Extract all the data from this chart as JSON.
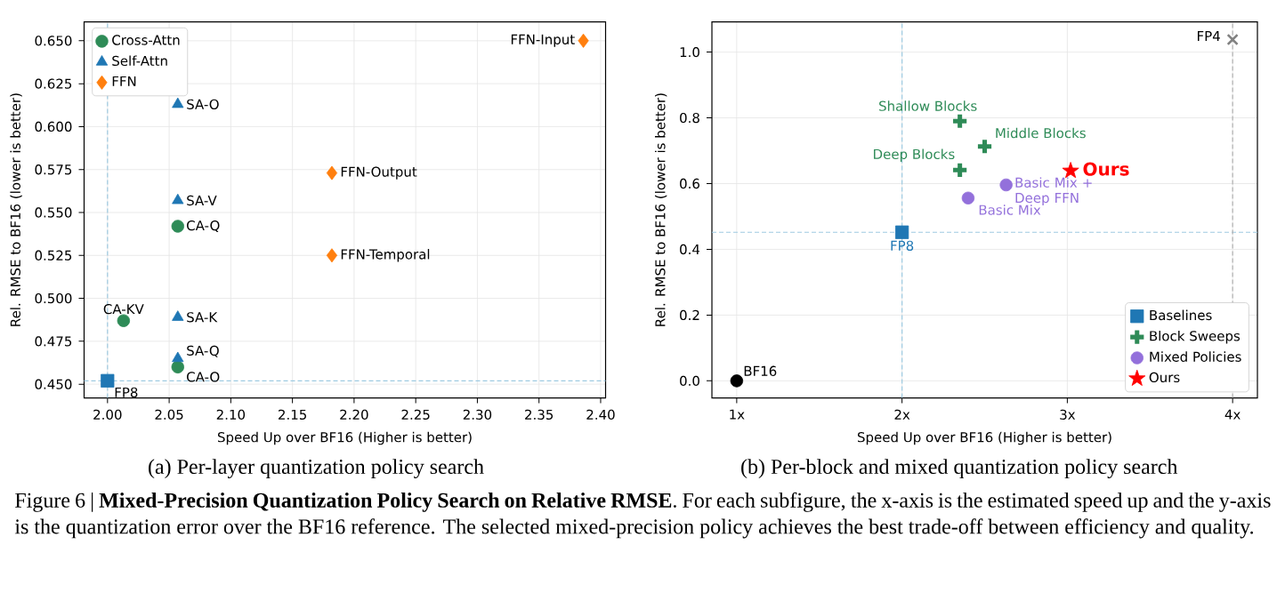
{
  "chart_data": [
    {
      "type": "scatter",
      "xlabel": "Speed Up over BF16 (Higher is better)",
      "ylabel": "Rel. RMSE to BF16 (lower is better)",
      "xlim": [
        1.981,
        2.404
      ],
      "ylim": [
        0.442,
        0.661
      ],
      "xticks": [
        {
          "value": 2,
          "label": "2.00"
        },
        {
          "value": 2.05,
          "label": "2.05"
        },
        {
          "value": 2.1,
          "label": "2.10"
        },
        {
          "value": 2.15,
          "label": "2.15"
        },
        {
          "value": 2.2,
          "label": "2.20"
        },
        {
          "value": 2.25,
          "label": "2.25"
        },
        {
          "value": 2.3,
          "label": "2.30"
        },
        {
          "value": 2.35,
          "label": "2.35"
        },
        {
          "value": 2.4,
          "label": "2.40"
        }
      ],
      "yticks": [
        {
          "value": 0.45,
          "label": "0.450"
        },
        {
          "value": 0.475,
          "label": "0.475"
        },
        {
          "value": 0.5,
          "label": "0.500"
        },
        {
          "value": 0.525,
          "label": "0.525"
        },
        {
          "value": 0.55,
          "label": "0.550"
        },
        {
          "value": 0.575,
          "label": "0.575"
        },
        {
          "value": 0.6,
          "label": "0.600"
        },
        {
          "value": 0.625,
          "label": "0.625"
        },
        {
          "value": 0.65,
          "label": "0.650"
        }
      ],
      "grid": true,
      "legend": "top left",
      "series": [
        {
          "name": "Cross-Attn",
          "color": "#2e8b57",
          "marker": "circle",
          "x": [
            2.013,
            2.057,
            2.057
          ],
          "values": [
            0.487,
            0.542,
            0.46
          ],
          "value_labels": [
            "CA-KV",
            "CA-Q",
            "CA-O"
          ]
        },
        {
          "name": "Self-Attn",
          "color": "#1f77b4",
          "marker": "triangle",
          "x": [
            2.057,
            2.057,
            2.057,
            2.057
          ],
          "values": [
            0.613,
            0.557,
            0.489,
            0.465
          ],
          "value_labels": [
            "SA-O",
            "SA-V",
            "SA-K",
            "SA-Q"
          ]
        },
        {
          "name": "FFN",
          "color": "#ff7f0e",
          "marker": "diamond",
          "x": [
            2.386,
            2.182,
            2.182
          ],
          "values": [
            0.65,
            0.573,
            0.525
          ],
          "value_labels": [
            "FFN-Input",
            "FFN-Output",
            "FFN-Temporal"
          ]
        },
        {
          "color": "#1f77b4",
          "marker": "square",
          "x": [
            2.0
          ],
          "values": [
            0.452
          ],
          "value_labels": [
            "FP8"
          ]
        }
      ],
      "ref_lines": [
        {
          "axis": "x",
          "value": 2,
          "color": "#9ecae1",
          "line_style": "dashed"
        },
        {
          "axis": "y",
          "value": 0.452,
          "color": "#9ecae1",
          "line_style": "dashed"
        }
      ],
      "annotations": [
        "(a) Per-layer quantization policy search"
      ]
    },
    {
      "type": "scatter",
      "xlabel": "Speed Up over BF16 (Higher is better)",
      "ylabel": "Rel. RMSE to BF16 (lower is better)",
      "xlim": [
        0.85,
        4.15
      ],
      "ylim": [
        -0.052,
        1.092
      ],
      "xticks": [
        {
          "value": 1,
          "label": "1x"
        },
        {
          "value": 2,
          "label": "2x"
        },
        {
          "value": 3,
          "label": "3x"
        },
        {
          "value": 4,
          "label": "4x"
        }
      ],
      "yticks": [
        {
          "value": 0,
          "label": "0.0"
        },
        {
          "value": 0.2,
          "label": "0.2"
        },
        {
          "value": 0.4,
          "label": "0.4"
        },
        {
          "value": 0.6,
          "label": "0.6"
        },
        {
          "value": 0.8,
          "label": "0.8"
        },
        {
          "value": 1,
          "label": "1.0"
        }
      ],
      "grid": true,
      "legend": "bottom right",
      "series": [
        {
          "name": "Baselines",
          "color": "#1f77b4",
          "marker": "square",
          "x": [
            2.0
          ],
          "values": [
            0.452
          ],
          "value_labels": [
            "FP8"
          ]
        },
        {
          "name": "Block Sweeps",
          "color": "#2e8b57",
          "marker": "plus",
          "x": [
            2.35,
            2.5,
            2.35
          ],
          "values": [
            0.79,
            0.713,
            0.641
          ],
          "value_labels": [
            "Shallow Blocks",
            "Middle Blocks",
            "Deep Blocks"
          ]
        },
        {
          "name": "Mixed Policies",
          "color": "#9370db",
          "marker": "circle",
          "x": [
            2.4,
            2.63
          ],
          "values": [
            0.556,
            0.596
          ],
          "value_labels": [
            "Basic Mix",
            "Basic Mix + Deep FFN"
          ]
        },
        {
          "name": "Ours",
          "color": "#ff0000",
          "marker": "star",
          "x": [
            3.02
          ],
          "values": [
            0.639
          ],
          "value_labels": [
            "Ours"
          ]
        },
        {
          "color": "#000000",
          "marker": "circle",
          "x": [
            1.0
          ],
          "values": [
            0.0
          ],
          "value_labels": [
            "BF16"
          ]
        },
        {
          "color": "#808080",
          "marker": "cross",
          "x": [
            4.0
          ],
          "values": [
            1.038
          ],
          "value_labels": [
            "FP4"
          ]
        }
      ],
      "ref_lines": [
        {
          "axis": "x",
          "value": 2,
          "color": "#9ecae1",
          "line_style": "dashed"
        },
        {
          "axis": "y",
          "value": 0.452,
          "color": "#9ecae1",
          "line_style": "dashed"
        },
        {
          "axis": "x",
          "value": 4,
          "color": "#b0b0b0",
          "line_style": "dashed"
        }
      ],
      "annotations": [
        "(b) Per-block and mixed quantization policy search",
        "Figure 6 | **Mixed-Precision Quantization Policy Search on Relative RMSE**. For each subfigure, the x-axis is the estimated speed up and the y-axis is the quantization error over the BF16 reference. The selected mixed-precision policy achieves the best trade-off between efficiency and quality."
      ]
    }
  ]
}
